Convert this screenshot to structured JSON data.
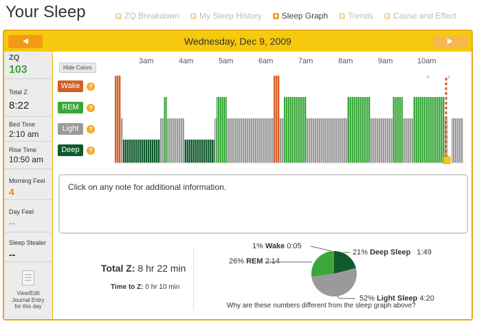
{
  "header": {
    "title": "Your Sleep",
    "tabs": [
      {
        "label": "ZQ Breakdown",
        "active": false
      },
      {
        "label": "My Sleep History",
        "active": false
      },
      {
        "label": "Sleep Graph",
        "active": true
      },
      {
        "label": "Trends",
        "active": false
      },
      {
        "label": "Cause and Effect",
        "active": false
      }
    ]
  },
  "date_bar": {
    "date": "Wednesday, Dec 9, 2009"
  },
  "sidebar": {
    "zq_label": "ZQ",
    "zq_value": "103",
    "total_z_label": "Total Z",
    "total_z_value": "8:22",
    "bed_time_label": "Bed Time",
    "bed_time_value": "2:10 am",
    "rise_time_label": "Rise Time",
    "rise_time_value": "10:50 am",
    "morning_feel_label": "Morning Feel",
    "morning_feel_value": "4",
    "day_feel_label": "Day Feel",
    "day_feel_value": "--",
    "sleep_stealer_label": "Sleep Stealer",
    "sleep_stealer_value": "--",
    "journal_line1": "View/Edit",
    "journal_line2": "Journal Entry",
    "journal_line3": "for this day"
  },
  "graph": {
    "hide_colors_label": "Hide Colors",
    "time_labels": [
      "3am",
      "4am",
      "5am",
      "6am",
      "7am",
      "8am",
      "9am",
      "10am"
    ],
    "legend": [
      {
        "label": "Wake",
        "color": "#d35f25"
      },
      {
        "label": "REM",
        "color": "#39a73a"
      },
      {
        "label": "Light",
        "color": "#9a9a9a"
      },
      {
        "label": "Deep",
        "color": "#0f5a2c"
      }
    ],
    "help_glyph": "?"
  },
  "notes": {
    "text": "Click on any note for additional information."
  },
  "totals": {
    "total_z_label": "Total Z:",
    "total_z_value": "8 hr 22 min",
    "time_to_z_label": "Time to Z:",
    "time_to_z_value": "0 hr 10 min"
  },
  "breakdown": {
    "wake": {
      "pct": "1%",
      "name": "Wake",
      "time": "0:05"
    },
    "rem": {
      "pct": "26%",
      "name": "REM",
      "time": "2:14"
    },
    "deep": {
      "pct": "21%",
      "name": "Deep Sleep",
      "time": "1:49"
    },
    "light": {
      "pct": "52%",
      "name": "Light Sleep",
      "time": "4:20"
    },
    "question": "Why are these numbers different from the sleep graph above?"
  }
}
